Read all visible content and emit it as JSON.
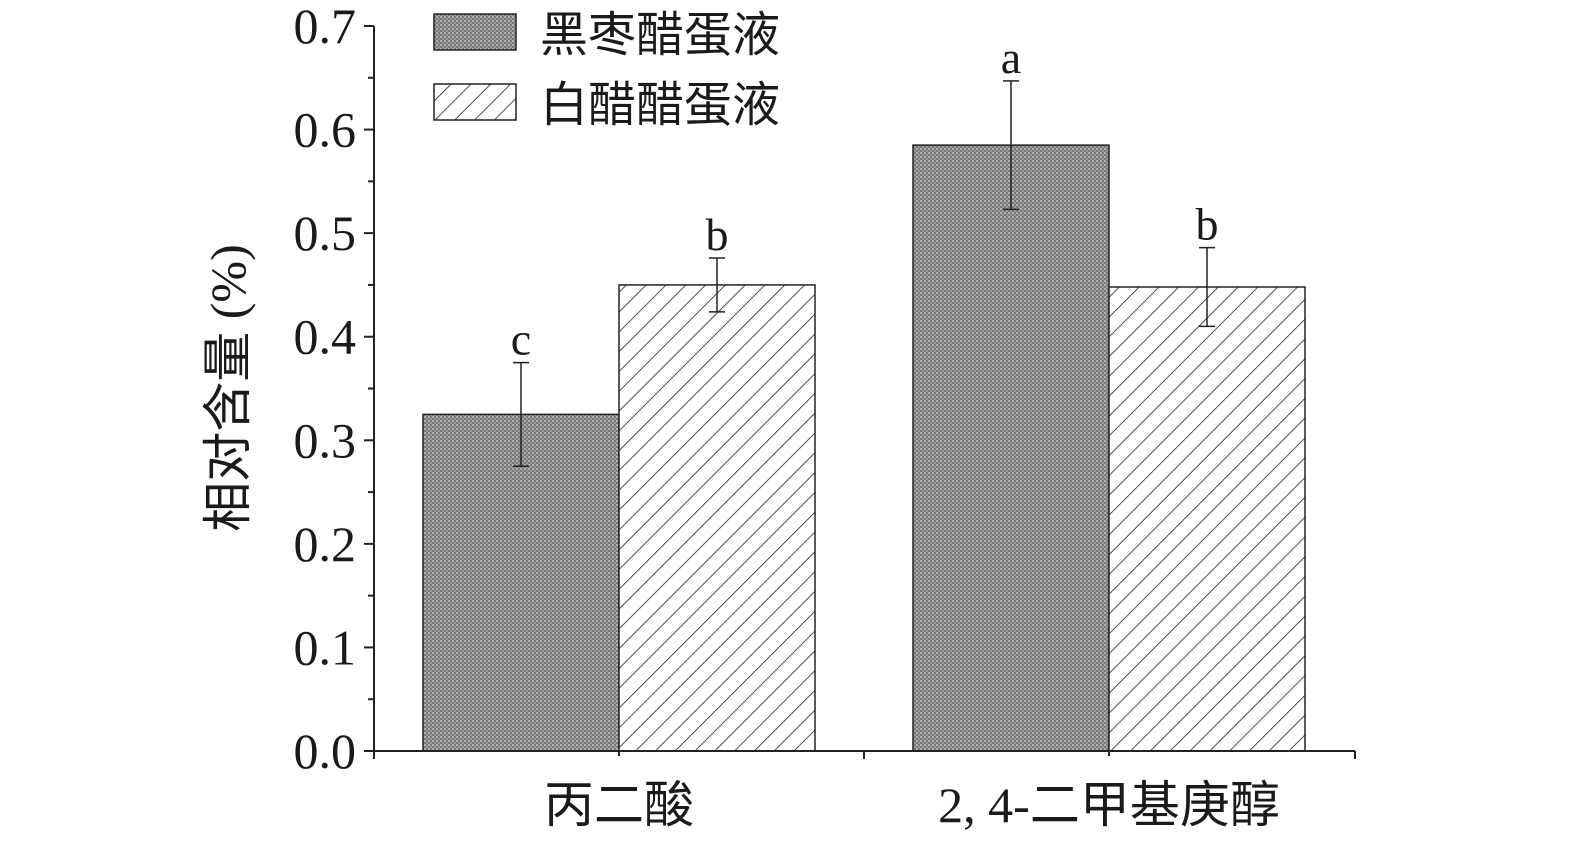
{
  "chart_data": {
    "type": "bar",
    "ylabel": "相对含量 (%)",
    "xlabel": "",
    "ylim": [
      0,
      0.7
    ],
    "yticks": [
      "0.0",
      "0.1",
      "0.2",
      "0.3",
      "0.4",
      "0.5",
      "0.6",
      "0.7"
    ],
    "categories": [
      "丙二酸",
      "2, 4-二甲基庚醇"
    ],
    "series": [
      {
        "name": "黑枣醋蛋液",
        "pattern": "dots",
        "color": "#8c8c8c",
        "values": [
          0.325,
          0.585
        ],
        "errors": [
          0.05,
          0.062
        ],
        "labels": [
          "c",
          "a"
        ]
      },
      {
        "name": "白醋醋蛋液",
        "pattern": "hatch",
        "color": "#ffffff",
        "values": [
          0.45,
          0.448
        ],
        "errors": [
          0.026,
          0.038
        ],
        "labels": [
          "b",
          "b"
        ]
      }
    ],
    "legend_position": "top-left",
    "grid": false
  }
}
